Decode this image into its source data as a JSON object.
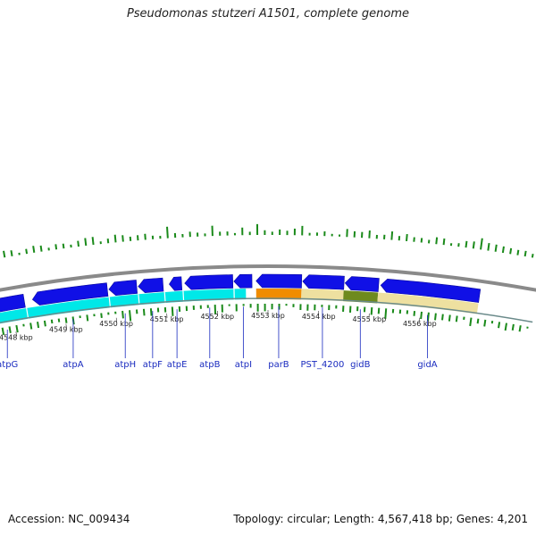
{
  "title": "Pseudomonas stutzeri A1501, complete genome",
  "footer": {
    "accession": "Accession: NC_009434",
    "summary": "Topology: circular; Length: 4,567,418 bp; Genes: 4,201"
  },
  "colors": {
    "backbone": "#8a8a8a",
    "gene_fwd": "#1010e6",
    "gene_rev": "#00e8e8",
    "orange_feature": "#f08c00",
    "khaki_feature": "#eee0a0",
    "olive_feature": "#6e8a1e",
    "tick": "#1a8a1a",
    "label": "#1a2bbf"
  },
  "axis": {
    "unit": "kbp",
    "ticks": [
      {
        "value": 4548,
        "label": "4548 kbp"
      },
      {
        "value": 4549,
        "label": "4549 kbp"
      },
      {
        "value": 4550,
        "label": "4550 kbp"
      },
      {
        "value": 4551,
        "label": "4551 kbp"
      },
      {
        "value": 4552,
        "label": "4552 kbp"
      },
      {
        "value": 4553,
        "label": "4553 kbp"
      },
      {
        "value": 4554,
        "label": "4554 kbp"
      },
      {
        "value": 4555,
        "label": "4555 kbp"
      },
      {
        "value": 4556,
        "label": "4556 kbp"
      }
    ]
  },
  "genes": [
    {
      "name": "atpG",
      "start": 4547.43,
      "end": 4548.27,
      "strand": "-"
    },
    {
      "name": "atpA",
      "start": 4548.43,
      "end": 4549.89,
      "strand": "-"
    },
    {
      "name": "atpH",
      "start": 4549.92,
      "end": 4550.46,
      "strand": "-"
    },
    {
      "name": "atpF",
      "start": 4550.49,
      "end": 4550.97,
      "strand": "-"
    },
    {
      "name": "atpE",
      "start": 4551.09,
      "end": 4551.33,
      "strand": "-"
    },
    {
      "name": "atpB",
      "start": 4551.39,
      "end": 4552.32,
      "strand": "-"
    },
    {
      "name": "atpI",
      "start": 4552.34,
      "end": 4552.69,
      "strand": "-"
    },
    {
      "name": "parB",
      "start": 4552.77,
      "end": 4553.65,
      "strand": "-"
    },
    {
      "name": "PST_4200",
      "start": 4553.67,
      "end": 4554.47,
      "strand": "-"
    },
    {
      "name": "gidB",
      "start": 4554.49,
      "end": 4555.14,
      "strand": "-"
    },
    {
      "name": "gidA",
      "start": 4555.18,
      "end": 4557.1,
      "strand": "-"
    }
  ],
  "labels": [
    {
      "gene": "atpG",
      "text": "atpG"
    },
    {
      "gene": "atpA",
      "text": "atpA"
    },
    {
      "gene": "atpH",
      "text": "atpH"
    },
    {
      "gene": "atpF",
      "text": "atpF"
    },
    {
      "gene": "atpE",
      "text": "atpE"
    },
    {
      "gene": "atpB",
      "text": "atpB"
    },
    {
      "gene": "atpI",
      "text": "atpI"
    },
    {
      "gene": "parB",
      "text": "parB"
    },
    {
      "gene": "PST_4200",
      "text": "PST_4200"
    },
    {
      "gene": "gidB",
      "text": "gidB"
    },
    {
      "gene": "gidA",
      "text": "gidA"
    }
  ],
  "features": [
    {
      "type": "orange",
      "start": 4552.77,
      "end": 4553.65
    },
    {
      "type": "khaki",
      "start": 4553.65,
      "end": 4554.47
    },
    {
      "type": "olive",
      "start": 4554.47,
      "end": 4555.14
    },
    {
      "type": "khaki",
      "start": 4555.14,
      "end": 4557.1
    }
  ]
}
